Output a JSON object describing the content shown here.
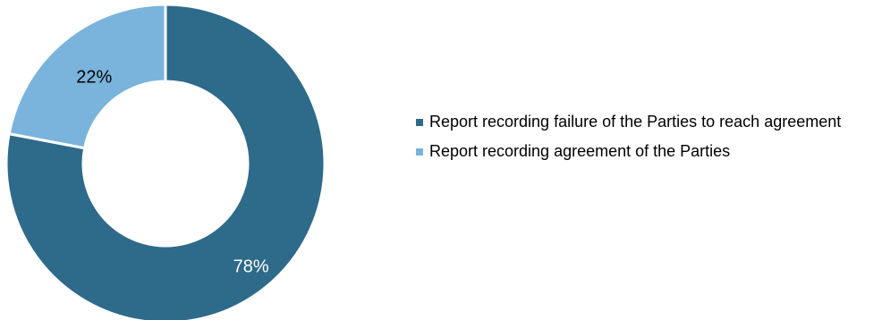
{
  "chart_data": {
    "type": "pie",
    "variant": "donut",
    "title": "",
    "categories": [
      "Report recording failure of the Parties to reach agreement",
      "Report recording agreement of the Parties"
    ],
    "values": [
      78,
      22
    ],
    "value_labels": [
      "78%",
      "22%"
    ],
    "colors": [
      "#2e6a8a",
      "#7ab4dc"
    ],
    "label_colors": [
      "#ffffff",
      "#000000"
    ],
    "legend_position": "right"
  }
}
